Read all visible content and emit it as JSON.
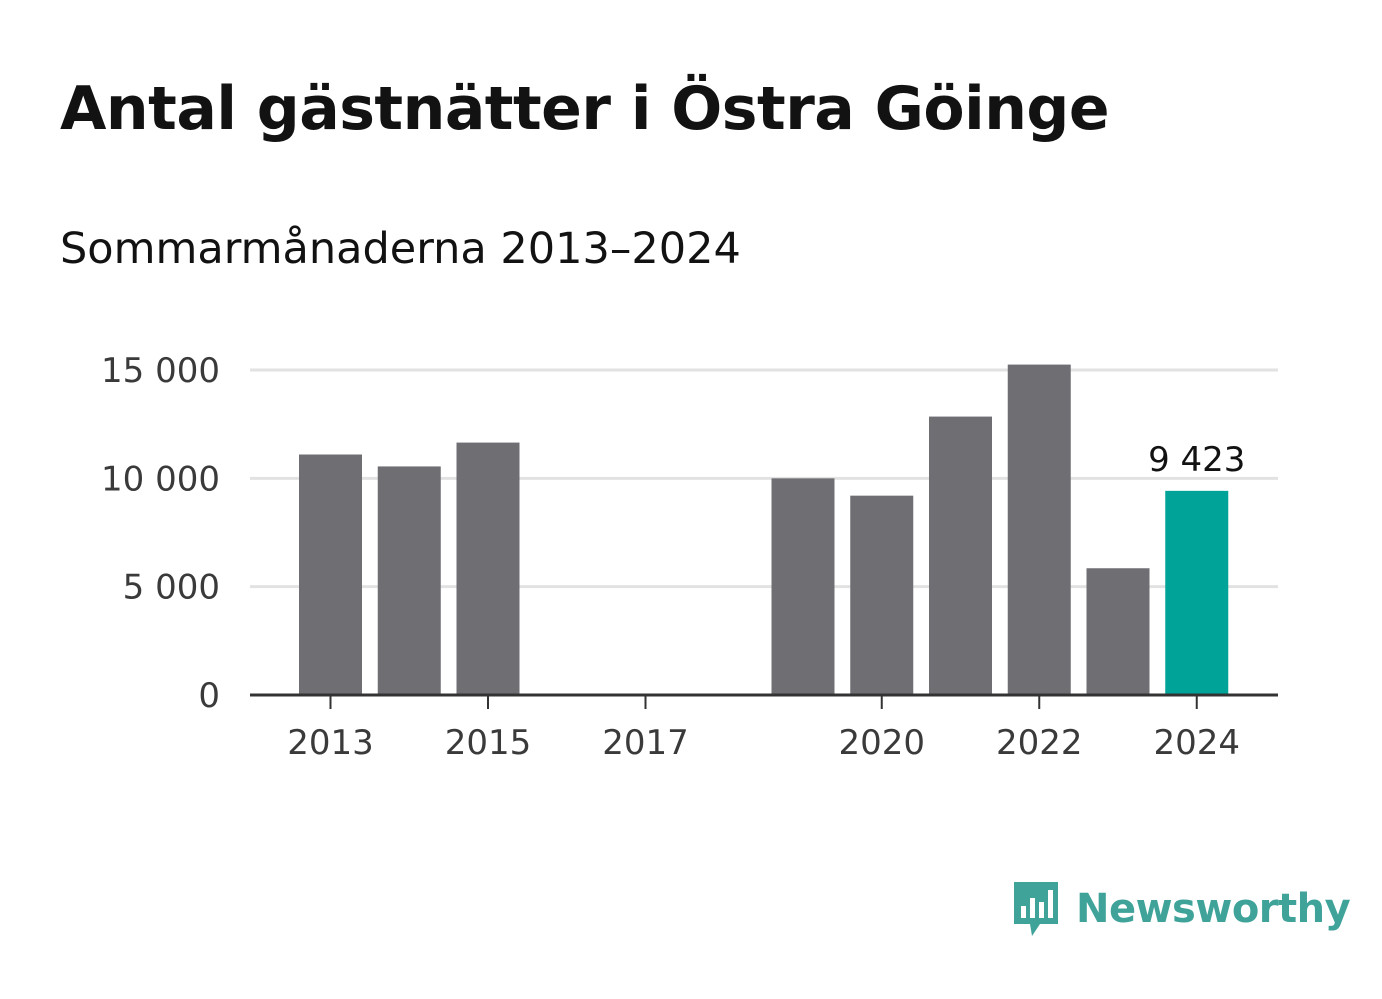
{
  "title": "Antal gästnätter i Östra Göinge",
  "subtitle": "Sommarmånaderna 2013–2024",
  "brand": {
    "name": "Newsworthy",
    "logo_icon": "bar-chart-speech-bubble-icon"
  },
  "colors": {
    "bar": "#6f6e73",
    "highlight": "#00a398",
    "grid": "#e2e2e2",
    "axis": "#333333",
    "brand": "#3fa39a"
  },
  "chart_data": {
    "type": "bar",
    "categories": [
      2013,
      2014,
      2015,
      2016,
      2017,
      2018,
      2019,
      2020,
      2021,
      2022,
      2023,
      2024
    ],
    "values": [
      11100,
      10550,
      11650,
      null,
      null,
      null,
      10000,
      9200,
      12850,
      15250,
      5850,
      9423
    ],
    "highlight_index": 11,
    "data_labels": [
      {
        "index": 11,
        "text": "9 423"
      }
    ],
    "y_ticks": [
      0,
      5000,
      10000,
      15000
    ],
    "y_tick_labels": [
      "0",
      "5 000",
      "10 000",
      "15 000"
    ],
    "x_tick_labels": [
      "2013",
      "2015",
      "2017",
      "2020",
      "2022",
      "2024"
    ],
    "x_tick_years": [
      2013,
      2015,
      2017,
      2020,
      2022,
      2024
    ],
    "ylim": [
      0,
      15000
    ],
    "grid": true,
    "xlabel": "",
    "ylabel": ""
  }
}
